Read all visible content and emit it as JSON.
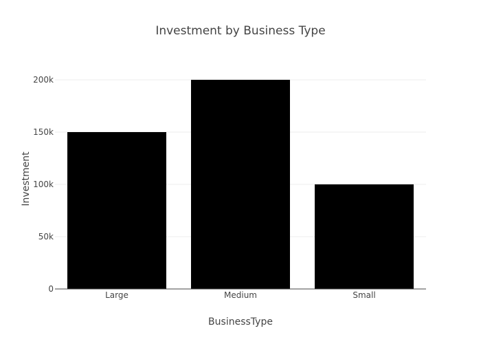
{
  "chart_data": {
    "type": "bar",
    "title": "Investment by Business Type",
    "xlabel": "BusinessType",
    "ylabel": "Investment",
    "categories": [
      "Large",
      "Medium",
      "Small"
    ],
    "values": [
      150000,
      200000,
      100000
    ],
    "ylim": [
      0,
      200000
    ],
    "yticks": [
      0,
      50000,
      100000,
      150000,
      200000
    ],
    "ytick_labels": [
      "0",
      "50k",
      "100k",
      "150k",
      "200k"
    ],
    "grid": true,
    "legend": "none",
    "bar_color": "#000000"
  }
}
